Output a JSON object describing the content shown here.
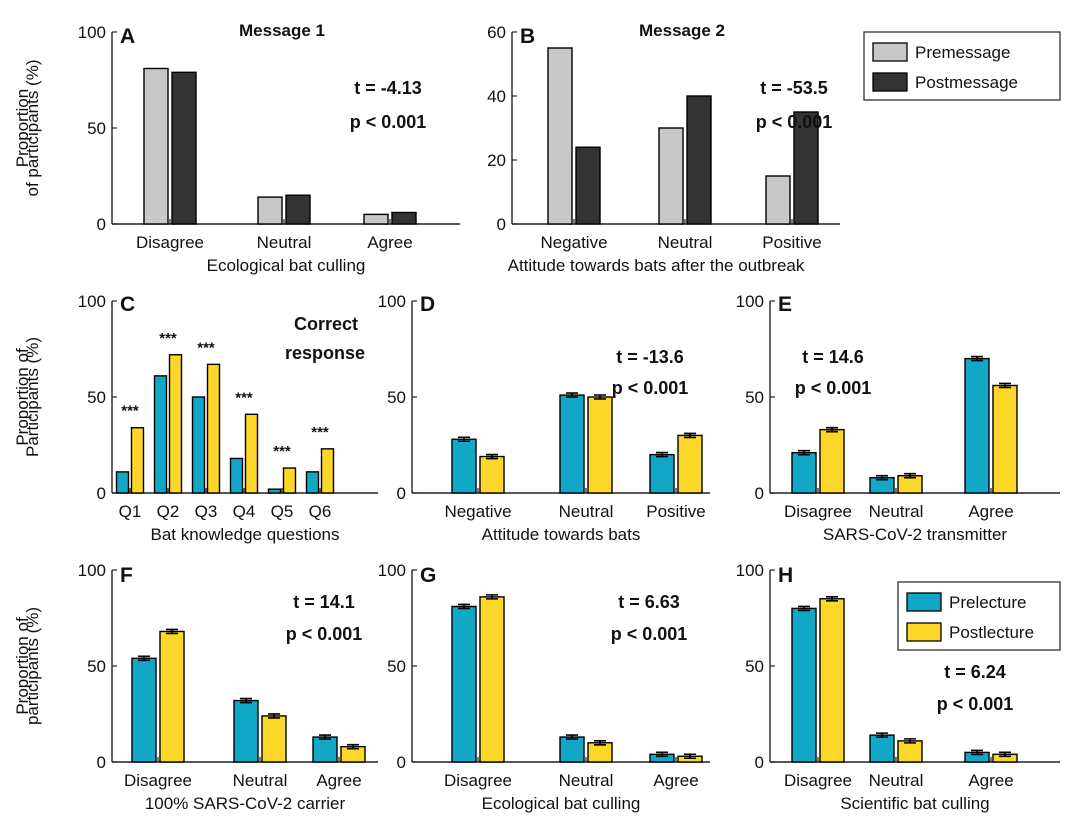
{
  "colors": {
    "premessage": "#c8c8c8",
    "postmessage": "#333333",
    "prelecture": "#12a7c7",
    "postlecture": "#fdd62a",
    "axis": "#222222"
  },
  "legends": {
    "message": {
      "entries": [
        "Premessage",
        "Postmessage"
      ],
      "placement": "top-right"
    },
    "lecture": {
      "entries": [
        "Prelecture",
        "Postlecture"
      ],
      "placement": "top-right"
    }
  },
  "chart_data": [
    {
      "id": "A",
      "letter": "A",
      "type": "bar",
      "title": "Message 1",
      "xlabel": "Ecological bat culling",
      "ylabel": [
        "Proportion",
        "of participants (%)"
      ],
      "ylim": [
        0,
        100
      ],
      "yticks": [
        0,
        50,
        100
      ],
      "categories": [
        "Disagree",
        "Neutral",
        "Agree"
      ],
      "series": [
        {
          "name": "Premessage",
          "values": [
            81,
            14,
            5
          ]
        },
        {
          "name": "Postmessage",
          "values": [
            79,
            15,
            6
          ]
        }
      ],
      "error_bars": false,
      "stat": [
        "t = -4.13",
        "p < 0.001"
      ]
    },
    {
      "id": "B",
      "letter": "B",
      "type": "bar",
      "title": "Message 2",
      "xlabel": "Attitude towards bats after the outbreak",
      "ylabel": [],
      "ylim": [
        0,
        60
      ],
      "yticks": [
        0,
        20,
        40,
        60
      ],
      "categories": [
        "Negative",
        "Neutral",
        "Positive"
      ],
      "series": [
        {
          "name": "Premessage",
          "values": [
            55,
            30,
            15
          ]
        },
        {
          "name": "Postmessage",
          "values": [
            24,
            40,
            35
          ]
        }
      ],
      "error_bars": false,
      "stat": [
        "t = -53.5",
        "p < 0.001"
      ]
    },
    {
      "id": "C",
      "letter": "C",
      "type": "bar",
      "title": "",
      "xlabel": "Bat knowledge questions",
      "ylabel": [
        "Proportion of",
        "Participants (%)"
      ],
      "ylim": [
        0,
        100
      ],
      "yticks": [
        0,
        50,
        100
      ],
      "categories": [
        "Q1",
        "Q2",
        "Q3",
        "Q4",
        "Q5",
        "Q6"
      ],
      "series": [
        {
          "name": "Prelecture",
          "values": [
            11,
            61,
            50,
            18,
            2,
            11
          ]
        },
        {
          "name": "Postlecture",
          "values": [
            34,
            72,
            67,
            41,
            13,
            23
          ]
        }
      ],
      "error_bars": false,
      "annotation": [
        "Correct",
        "response"
      ],
      "significance": [
        "***",
        "***",
        "***",
        "***",
        "***",
        "***"
      ]
    },
    {
      "id": "D",
      "letter": "D",
      "type": "bar",
      "title": "",
      "xlabel": "Attitude towards bats",
      "ylabel": [],
      "ylim": [
        0,
        100
      ],
      "yticks": [
        0,
        50,
        100
      ],
      "categories": [
        "Negative",
        "Neutral",
        "Positive"
      ],
      "series": [
        {
          "name": "Prelecture",
          "values": [
            28,
            51,
            20
          ]
        },
        {
          "name": "Postlecture",
          "values": [
            19,
            50,
            30
          ]
        }
      ],
      "error_bars": true,
      "stat": [
        "t = -13.6",
        "p < 0.001"
      ]
    },
    {
      "id": "E",
      "letter": "E",
      "type": "bar",
      "title": "",
      "xlabel": "SARS-CoV-2 transmitter",
      "ylabel": [],
      "ylim": [
        0,
        100
      ],
      "yticks": [
        0,
        50,
        100
      ],
      "categories": [
        "Disagree",
        "Neutral",
        "Agree"
      ],
      "series": [
        {
          "name": "Prelecture",
          "values": [
            21,
            8,
            70
          ]
        },
        {
          "name": "Postlecture",
          "values": [
            33,
            9,
            56
          ]
        }
      ],
      "error_bars": true,
      "stat": [
        "t = 14.6",
        "p < 0.001"
      ]
    },
    {
      "id": "F",
      "letter": "F",
      "type": "bar",
      "title": "",
      "xlabel": "100% SARS-CoV-2 carrier",
      "ylabel": [
        "Proportion of",
        "participants (%)"
      ],
      "ylim": [
        0,
        100
      ],
      "yticks": [
        0,
        50,
        100
      ],
      "categories": [
        "Disagree",
        "Neutral",
        "Agree"
      ],
      "series": [
        {
          "name": "Prelecture",
          "values": [
            54,
            32,
            13
          ]
        },
        {
          "name": "Postlecture",
          "values": [
            68,
            24,
            8
          ]
        }
      ],
      "error_bars": true,
      "stat": [
        "t = 14.1",
        "p < 0.001"
      ]
    },
    {
      "id": "G",
      "letter": "G",
      "type": "bar",
      "title": "",
      "xlabel": "Ecological bat culling",
      "ylabel": [],
      "ylim": [
        0,
        100
      ],
      "yticks": [
        0,
        50,
        100
      ],
      "categories": [
        "Disagree",
        "Neutral",
        "Agree"
      ],
      "series": [
        {
          "name": "Prelecture",
          "values": [
            81,
            13,
            4
          ]
        },
        {
          "name": "Postlecture",
          "values": [
            86,
            10,
            3
          ]
        }
      ],
      "error_bars": true,
      "stat": [
        "t = 6.63",
        "p < 0.001"
      ]
    },
    {
      "id": "H",
      "letter": "H",
      "type": "bar",
      "title": "",
      "xlabel": "Scientific bat culling",
      "ylabel": [],
      "ylim": [
        0,
        100
      ],
      "yticks": [
        0,
        50,
        100
      ],
      "categories": [
        "Disagree",
        "Neutral",
        "Agree"
      ],
      "series": [
        {
          "name": "Prelecture",
          "values": [
            80,
            14,
            5
          ]
        },
        {
          "name": "Postlecture",
          "values": [
            85,
            11,
            4
          ]
        }
      ],
      "error_bars": true,
      "stat": [
        "t = 6.24",
        "p < 0.001"
      ]
    }
  ]
}
